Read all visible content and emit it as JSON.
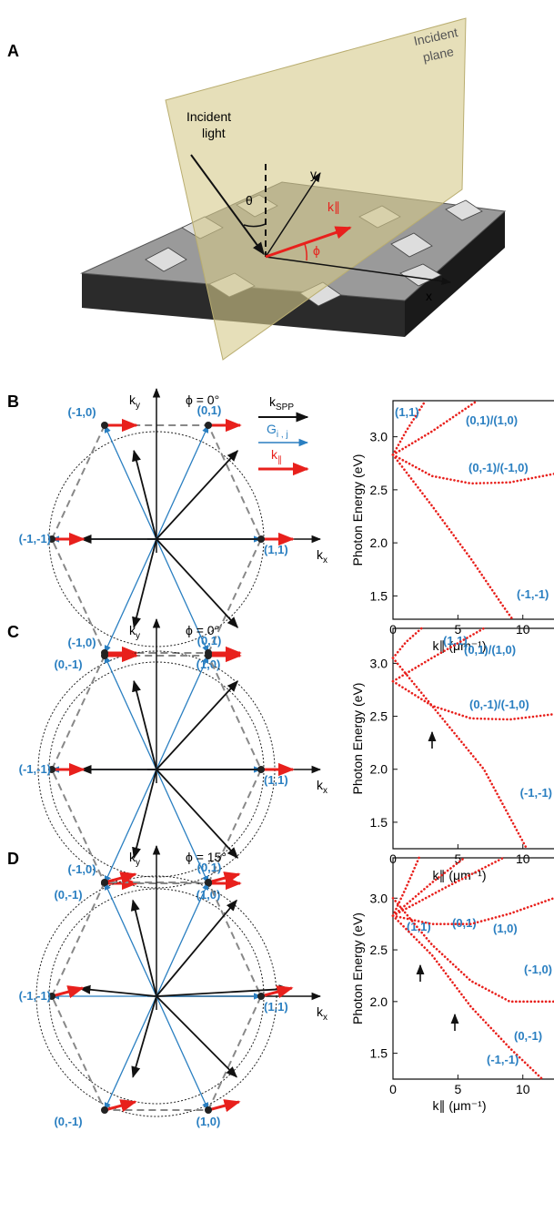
{
  "panel_a": {
    "label": "A",
    "incident_light": [
      "Incident",
      "light"
    ],
    "incident_plane": [
      "Incident",
      "plane"
    ],
    "theta": "θ",
    "phi": "ϕ",
    "k_par": "k∥",
    "x": "x",
    "y": "y"
  },
  "legend": {
    "k_spp": {
      "base": "k",
      "sub": "SPP"
    },
    "g": {
      "base": "G",
      "sub": "i , j"
    },
    "k_par": {
      "base": "k",
      "sub": "∥"
    }
  },
  "diagrams": [
    {
      "label": "B",
      "phi": "ϕ = 0°",
      "kx": {
        "base": "k",
        "sub": "x"
      },
      "ky": {
        "base": "k",
        "sub": "y"
      },
      "orders": [
        "(-1,0)",
        "(0,1)",
        "(-1,-1)",
        "(1,1)",
        "(0,-1)",
        "(1,0)"
      ]
    },
    {
      "label": "C",
      "phi": "ϕ = 0°",
      "kx": {
        "base": "k",
        "sub": "x"
      },
      "ky": {
        "base": "k",
        "sub": "y"
      },
      "orders": [
        "(-1,0)",
        "(0,1)",
        "(-1,-1)",
        "(1,1)",
        "(0,-1)",
        "(1,0)"
      ]
    },
    {
      "label": "D",
      "phi": "ϕ = 15°",
      "kx": {
        "base": "k",
        "sub": "x"
      },
      "ky": {
        "base": "k",
        "sub": "y"
      },
      "orders": [
        "(-1,0)",
        "(0,1)",
        "(-1,-1)",
        "(1,1)",
        "(0,-1)",
        "(1,0)"
      ]
    }
  ],
  "chart_data": [
    {
      "type": "line",
      "x_label": "k∥ (μm⁻¹)",
      "y_label": "Photon Energy (eV)",
      "xlim": [
        0,
        12.4
      ],
      "ylim": [
        1.28,
        3.34
      ],
      "xticks": [
        0,
        5,
        10
      ],
      "yticks": [
        1.5,
        {
          "value": 2,
          "label": "2.0"
        },
        2.5,
        {
          "value": 3,
          "label": "3.0"
        }
      ],
      "series": [
        {
          "name": "(1,1)",
          "color": "#e8201c",
          "x": [
            0,
            1,
            2.5
          ],
          "values": [
            2.83,
            3.05,
            3.34
          ]
        },
        {
          "name": "(0,1)/(1,0)",
          "color": "#e8201c",
          "x": [
            0,
            3,
            6.5
          ],
          "values": [
            2.83,
            3.05,
            3.34
          ]
        },
        {
          "name": "(0,-1)/(-1,0)",
          "color": "#e8201c",
          "x": [
            0,
            3,
            6,
            9,
            12.4
          ],
          "values": [
            2.83,
            2.63,
            2.56,
            2.57,
            2.65
          ]
        },
        {
          "name": "(-1,-1)",
          "color": "#e8201c",
          "x": [
            0,
            3,
            6,
            8.5,
            9.2
          ],
          "values": [
            2.83,
            2.35,
            1.85,
            1.4,
            1.28
          ]
        }
      ]
    },
    {
      "type": "line",
      "x_label": "k∥ (μm⁻¹)",
      "y_label": "Photon Energy (eV)",
      "xlim": [
        0,
        12.4
      ],
      "ylim": [
        1.25,
        3.33
      ],
      "xticks": [
        0,
        5,
        10
      ],
      "yticks": [
        1.5,
        {
          "value": 2,
          "label": "2.0"
        },
        2.5,
        {
          "value": 3,
          "label": "3.0"
        }
      ],
      "series": [
        {
          "name": "(1,1)",
          "color": "#e8201c",
          "x": [
            0,
            1,
            2.2
          ],
          "values": [
            3.05,
            3.2,
            3.33
          ]
        },
        {
          "name": "(0,1)/(1,0)",
          "color": "#e8201c",
          "x": [
            0,
            3,
            7
          ],
          "values": [
            2.83,
            3.05,
            3.33
          ]
        },
        {
          "name": "(0,-1)/(-1,0)",
          "color": "#e8201c",
          "x": [
            0,
            3,
            6,
            9,
            12.4
          ],
          "values": [
            2.83,
            2.6,
            2.48,
            2.47,
            2.52
          ]
        },
        {
          "name": "(-1,-1)",
          "color": "#e8201c",
          "x": [
            0,
            3,
            7,
            10.3
          ],
          "values": [
            3.05,
            2.6,
            2.0,
            1.25
          ]
        }
      ]
    },
    {
      "type": "line",
      "x_label": "k∥ (μm⁻¹)",
      "y_label": "Photon Energy (eV)",
      "xlim": [
        0,
        12.4
      ],
      "ylim": [
        1.25,
        3.39
      ],
      "xticks": [
        0,
        5,
        10
      ],
      "yticks": [
        1.5,
        {
          "value": 2,
          "label": "2.0"
        },
        2.5,
        {
          "value": 3,
          "label": "3.0"
        }
      ],
      "series": [
        {
          "name": "(1,1)",
          "color": "#e8201c",
          "x": [
            0,
            1,
            2
          ],
          "values": [
            2.83,
            3.1,
            3.39
          ]
        },
        {
          "name": "(0,1)",
          "color": "#e8201c",
          "x": [
            0,
            3,
            5.5
          ],
          "values": [
            2.83,
            3.15,
            3.39
          ]
        },
        {
          "name": "(1,0)",
          "color": "#e8201c",
          "x": [
            0,
            4,
            8.5
          ],
          "values": [
            2.83,
            3.1,
            3.39
          ]
        },
        {
          "name": "(-1,0)",
          "color": "#e8201c",
          "x": [
            0,
            3,
            6,
            9,
            12.4
          ],
          "values": [
            2.83,
            2.75,
            2.75,
            2.85,
            3.0
          ]
        },
        {
          "name": "(0,-1)",
          "color": "#e8201c",
          "x": [
            0,
            3,
            6,
            9,
            12.4
          ],
          "values": [
            3.0,
            2.55,
            2.2,
            2.0,
            2.0
          ]
        },
        {
          "name": "(-1,-1)",
          "color": "#e8201c",
          "x": [
            0,
            3,
            6,
            9,
            11.5
          ],
          "values": [
            2.83,
            2.45,
            1.95,
            1.55,
            1.25
          ]
        }
      ]
    }
  ]
}
